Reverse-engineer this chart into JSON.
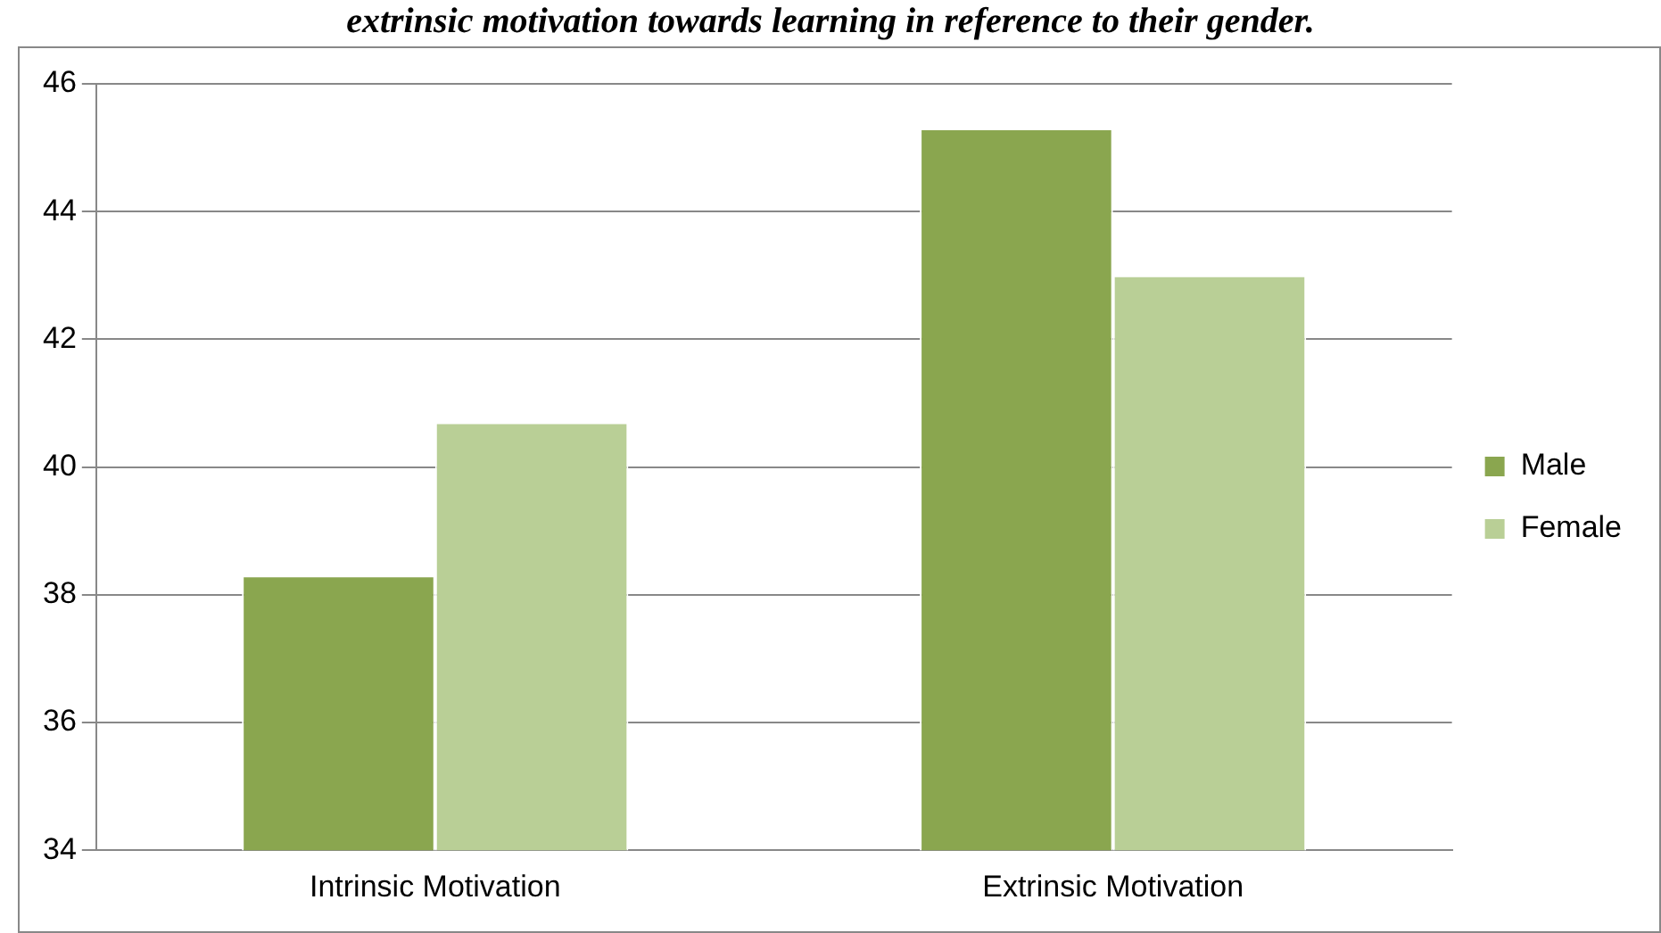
{
  "chart_data": {
    "type": "bar",
    "title": "extrinsic motivation towards learning in reference to their gender.",
    "categories": [
      "Intrinsic Motivation",
      "Extrinsic Motivation"
    ],
    "series": [
      {
        "name": "Male",
        "color": "#8aa64f",
        "values": [
          38.3,
          45.3
        ]
      },
      {
        "name": "Female",
        "color": "#b9cf96",
        "values": [
          40.7,
          43.0
        ]
      }
    ],
    "ylim": [
      34,
      46
    ],
    "yticks": [
      34,
      36,
      38,
      40,
      42,
      44,
      46
    ],
    "grid": "y",
    "legend": "right"
  }
}
